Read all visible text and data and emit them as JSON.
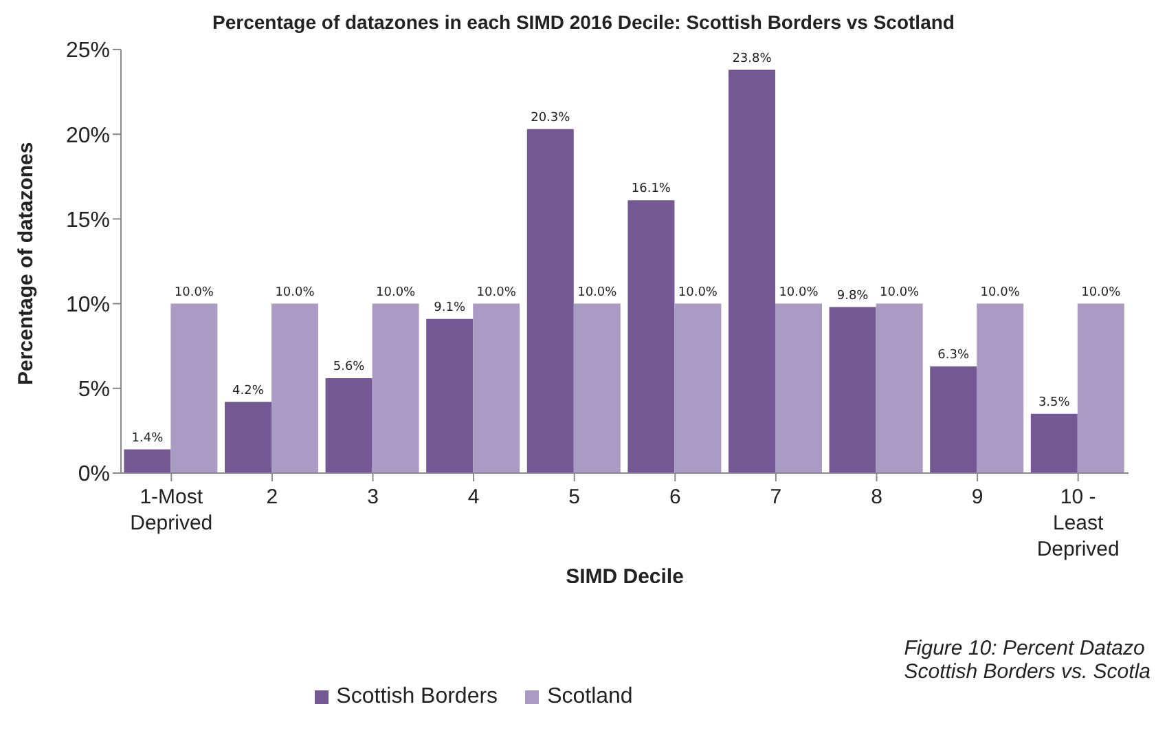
{
  "chart_data": {
    "type": "bar",
    "title": "Percentage of datazones  in each SIMD 2016 Decile: Scottish Borders vs Scotland",
    "xlabel": "SIMD Decile",
    "ylabel": "Percentage of datazones",
    "categories": [
      "1-Most Deprived",
      "2",
      "3",
      "4",
      "5",
      "6",
      "7",
      "8",
      "9",
      "10 - Least Deprived"
    ],
    "series": [
      {
        "name": "Scottish Borders",
        "color": "#735893",
        "values": [
          1.4,
          4.2,
          5.6,
          9.1,
          20.3,
          16.1,
          23.8,
          9.8,
          6.3,
          3.5
        ],
        "value_labels": [
          "1.4%",
          "4.2%",
          "5.6%",
          "9.1%",
          "20.3%",
          "16.1%",
          "23.8%",
          "9.8%",
          "6.3%",
          "3.5%"
        ]
      },
      {
        "name": "Scotland",
        "color": "#a99bc3",
        "values": [
          10,
          10,
          10,
          10,
          10,
          10,
          10,
          10,
          10,
          10
        ],
        "value_labels": [
          "10.0%",
          "10.0%",
          "10.0%",
          "10.0%",
          "10.0%",
          "10.0%",
          "10.0%",
          "10.0%",
          "10.0%",
          "10.0%"
        ]
      }
    ],
    "ylim": [
      0,
      25
    ],
    "yticks": [
      {
        "value": 0,
        "label": "0%"
      },
      {
        "value": 5,
        "label": "5%"
      },
      {
        "value": 10,
        "label": "10%"
      },
      {
        "value": 15,
        "label": "15%"
      },
      {
        "value": 20,
        "label": "20%"
      },
      {
        "value": 25,
        "label": "25%"
      }
    ],
    "grid": false,
    "legend": "bottom",
    "annotations": [
      "Figure 10: Percent Datazo",
      "Scottish Borders vs. Scotla"
    ]
  }
}
